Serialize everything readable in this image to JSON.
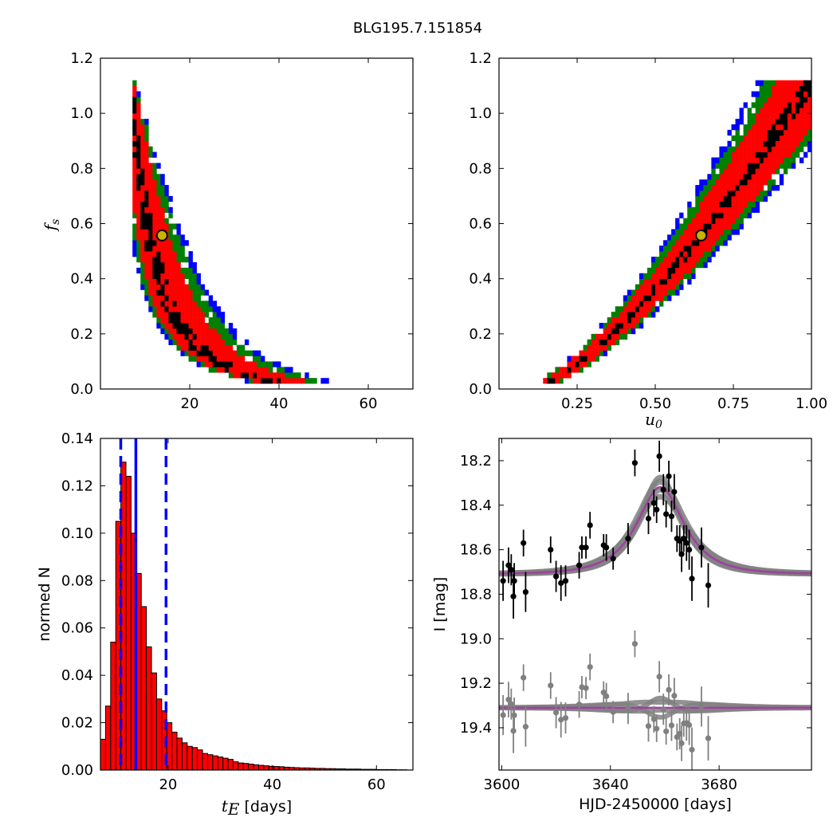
{
  "figure_title": "BLG195.7.151854",
  "colors": {
    "level_black": "#000000",
    "level_red": "#ff0000",
    "level_green": "#008000",
    "level_blue": "#0000ff",
    "marker_edge": "#000000",
    "marker_fill": "#c8b400",
    "hist_bar": "#ff0000",
    "vline": "#0000ff",
    "model": "#a040a0",
    "model_band": "#808080",
    "data_main": "#000000",
    "data_resid": "#808080"
  },
  "chart_data": [
    {
      "id": "panel_fs_tE",
      "type": "heatmap",
      "title": "",
      "xlabel": "",
      "ylabel_sym": "f",
      "ylabel_sub": "s",
      "xlim": [
        0,
        70
      ],
      "ylim": [
        0,
        1.2
      ],
      "xticks": [
        20,
        40,
        60
      ],
      "yticks": [
        0.0,
        0.2,
        0.4,
        0.6,
        0.8,
        1.0,
        1.2
      ],
      "ytick_labels": [
        "0.0",
        "0.2",
        "0.4",
        "0.6",
        "0.8",
        "1.0",
        "1.2"
      ],
      "model_family": "tE_vs_fs",
      "confidence_levels": [
        "blue",
        "green",
        "red",
        "black"
      ],
      "best_fit": {
        "x": 13.8,
        "y": 0.557
      }
    },
    {
      "id": "panel_fs_u0",
      "type": "heatmap",
      "title": "",
      "xlabel_sym": "u",
      "xlabel_sub": "0",
      "xlim": [
        0,
        1
      ],
      "ylim": [
        0,
        1.2
      ],
      "xticks": [
        0.25,
        0.5,
        0.75,
        1.0
      ],
      "xtick_labels": [
        "0.25",
        "0.50",
        "0.75",
        "1.00"
      ],
      "yticks": [
        0.0,
        0.2,
        0.4,
        0.6,
        0.8,
        1.0,
        1.2
      ],
      "ytick_labels": [
        "0.0",
        "0.2",
        "0.4",
        "0.6",
        "0.8",
        "1.0",
        "1.2"
      ],
      "model_family": "u0_vs_fs",
      "confidence_levels": [
        "blue",
        "green",
        "red",
        "black"
      ],
      "best_fit": {
        "x": 0.647,
        "y": 0.557
      }
    },
    {
      "id": "panel_hist_tE",
      "type": "bar",
      "xlabel_sym": "t",
      "xlabel_sub": "E",
      "xlabel_rest": " [days]",
      "ylabel": "normed N",
      "xlim": [
        7,
        67
      ],
      "ylim": [
        0,
        0.14
      ],
      "xticks": [
        20,
        40,
        60
      ],
      "yticks": [
        0.0,
        0.02,
        0.04,
        0.06,
        0.08,
        0.1,
        0.12,
        0.14
      ],
      "ytick_labels": [
        "0.00",
        "0.02",
        "0.04",
        "0.06",
        "0.08",
        "0.10",
        "0.12",
        "0.14"
      ],
      "bin_start": 7.0,
      "bin_width": 0.98,
      "values": [
        0.013,
        0.027,
        0.054,
        0.105,
        0.13,
        0.124,
        0.1,
        0.083,
        0.069,
        0.052,
        0.041,
        0.03,
        0.025,
        0.02,
        0.016,
        0.0135,
        0.0115,
        0.01,
        0.0095,
        0.0085,
        0.007,
        0.0065,
        0.006,
        0.0055,
        0.005,
        0.0045,
        0.0035,
        0.003,
        0.0028,
        0.0025,
        0.0022,
        0.002,
        0.0018,
        0.0016,
        0.0015,
        0.0014,
        0.0012,
        0.0011,
        0.001,
        0.0009,
        0.0009,
        0.0008,
        0.0007,
        0.0007,
        0.0006,
        0.0006,
        0.0005,
        0.0005,
        0.0004,
        0.0004,
        0.0004,
        0.0003,
        0.0003,
        0.0003,
        0.0002,
        0.0002,
        0.0002,
        0.0002,
        0.0001,
        0.0001
      ],
      "vlines": [
        {
          "x": 10.9,
          "style": "dashed"
        },
        {
          "x": 13.8,
          "style": "solid"
        },
        {
          "x": 19.6,
          "style": "dashed"
        }
      ]
    },
    {
      "id": "panel_lightcurve",
      "type": "scatter",
      "xlabel": "HJD-2450000 [days]",
      "ylabel": "I [mag]",
      "xlim": [
        3599,
        3714
      ],
      "ylim": [
        19.59,
        18.1
      ],
      "xticks": [
        3600,
        3640,
        3680
      ],
      "yticks": [
        18.2,
        18.4,
        18.6,
        18.8,
        19.0,
        19.2,
        19.4
      ],
      "ytick_labels": [
        "18.2",
        "18.4",
        "18.6",
        "18.8",
        "19.0",
        "19.2",
        "19.4"
      ],
      "model": {
        "t0": 3658.4,
        "tE": 13.8,
        "u0": 0.647,
        "fs": 0.557,
        "I_base": 18.71
      },
      "residual_offset": 19.31,
      "points": [
        {
          "x": 3600.5,
          "y": 18.74,
          "e": 0.09
        },
        {
          "x": 3602.5,
          "y": 18.67,
          "e": 0.08
        },
        {
          "x": 3603.5,
          "y": 18.69,
          "e": 0.07
        },
        {
          "x": 3604.3,
          "y": 18.81,
          "e": 0.1
        },
        {
          "x": 3604.6,
          "y": 18.74,
          "e": 0.08
        },
        {
          "x": 3608.0,
          "y": 18.57,
          "e": 0.06
        },
        {
          "x": 3608.8,
          "y": 18.79,
          "e": 0.09
        },
        {
          "x": 3618.0,
          "y": 18.6,
          "e": 0.06
        },
        {
          "x": 3620.0,
          "y": 18.72,
          "e": 0.07
        },
        {
          "x": 3621.8,
          "y": 18.75,
          "e": 0.08
        },
        {
          "x": 3623.5,
          "y": 18.74,
          "e": 0.07
        },
        {
          "x": 3628.5,
          "y": 18.67,
          "e": 0.06
        },
        {
          "x": 3629.5,
          "y": 18.59,
          "e": 0.05
        },
        {
          "x": 3631.0,
          "y": 18.59,
          "e": 0.05
        },
        {
          "x": 3632.5,
          "y": 18.49,
          "e": 0.06
        },
        {
          "x": 3637.5,
          "y": 18.58,
          "e": 0.05
        },
        {
          "x": 3638.5,
          "y": 18.59,
          "e": 0.06
        },
        {
          "x": 3641.0,
          "y": 18.64,
          "e": 0.05
        },
        {
          "x": 3646.5,
          "y": 18.55,
          "e": 0.07
        },
        {
          "x": 3649.0,
          "y": 18.21,
          "e": 0.06
        },
        {
          "x": 3654.0,
          "y": 18.46,
          "e": 0.07
        },
        {
          "x": 3656.0,
          "y": 18.39,
          "e": 0.06
        },
        {
          "x": 3657.0,
          "y": 18.42,
          "e": 0.06
        },
        {
          "x": 3658.0,
          "y": 18.18,
          "e": 0.07
        },
        {
          "x": 3659.5,
          "y": 18.33,
          "e": 0.07
        },
        {
          "x": 3660.5,
          "y": 18.44,
          "e": 0.06
        },
        {
          "x": 3661.5,
          "y": 18.27,
          "e": 0.07
        },
        {
          "x": 3662.5,
          "y": 18.45,
          "e": 0.07
        },
        {
          "x": 3663.5,
          "y": 18.34,
          "e": 0.08
        },
        {
          "x": 3664.5,
          "y": 18.55,
          "e": 0.06
        },
        {
          "x": 3665.5,
          "y": 18.56,
          "e": 0.07
        },
        {
          "x": 3666.2,
          "y": 18.62,
          "e": 0.08
        },
        {
          "x": 3667.0,
          "y": 18.55,
          "e": 0.06
        },
        {
          "x": 3668.0,
          "y": 18.57,
          "e": 0.08
        },
        {
          "x": 3669.0,
          "y": 18.6,
          "e": 0.09
        },
        {
          "x": 3670.0,
          "y": 18.73,
          "e": 0.1
        },
        {
          "x": 3673.5,
          "y": 18.59,
          "e": 0.09
        },
        {
          "x": 3676.0,
          "y": 18.76,
          "e": 0.1
        }
      ]
    }
  ]
}
